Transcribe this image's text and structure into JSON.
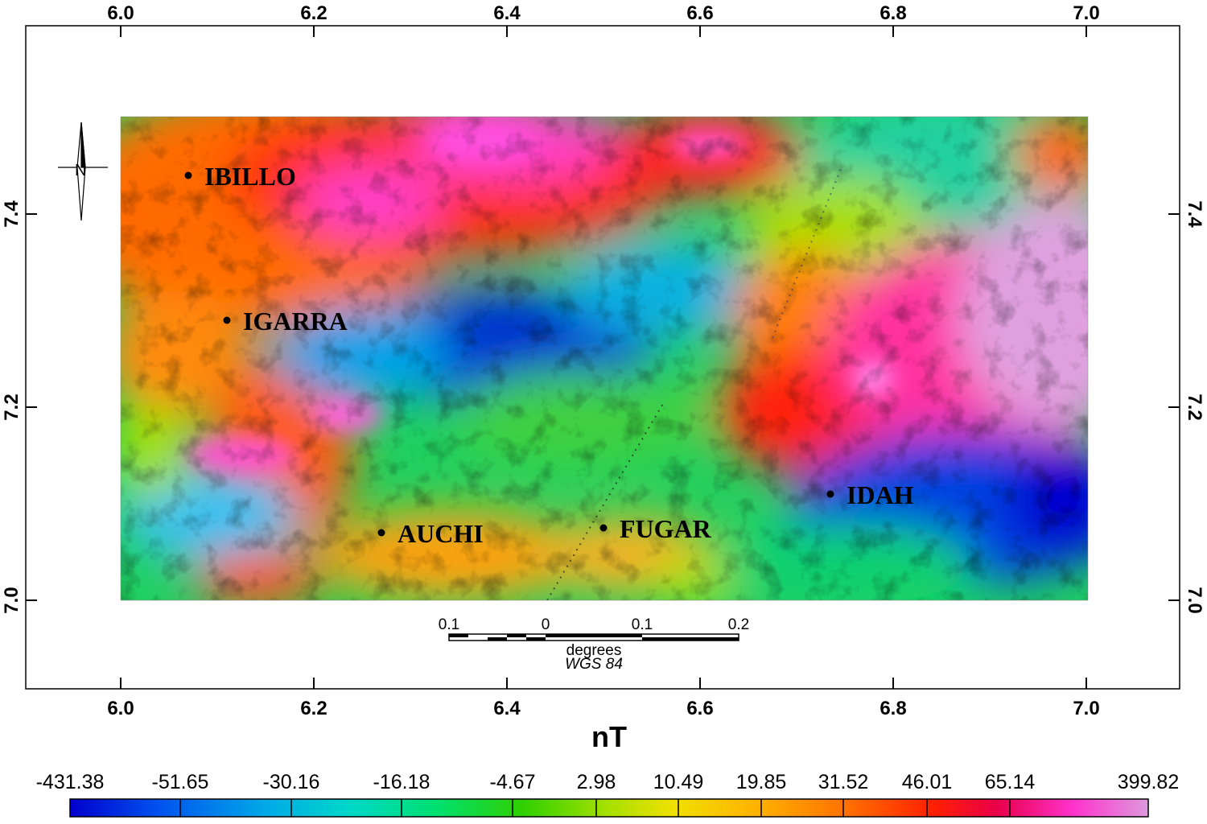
{
  "map": {
    "x_ticks": [
      "6.0",
      "6.2",
      "6.4",
      "6.6",
      "6.8",
      "7.0"
    ],
    "y_ticks": [
      "7.4",
      "7.2",
      "7.0"
    ],
    "towns": [
      {
        "name": "IBILLO",
        "lon": 6.07,
        "lat": 7.44
      },
      {
        "name": "IGARRA",
        "lon": 6.11,
        "lat": 7.29
      },
      {
        "name": "AUCHI",
        "lon": 6.27,
        "lat": 7.07
      },
      {
        "name": "FUGAR",
        "lon": 6.5,
        "lat": 7.075
      },
      {
        "name": "IDAH",
        "lon": 6.735,
        "lat": 7.11
      }
    ],
    "scale_bar": {
      "labels": [
        "0.1",
        "0",
        "0.1",
        "0.2"
      ],
      "unit": "degrees",
      "datum": "WGS 84"
    },
    "north_arrow_label": "N"
  },
  "colorbar": {
    "unit": "nT",
    "labels": [
      "-431.38",
      "-51.65",
      "-30.16",
      "-16.18",
      "-4.67",
      "2.98",
      "10.49",
      "19.85",
      "31.52",
      "46.01",
      "65.14",
      "399.82"
    ],
    "colors": [
      "#0000cc",
      "#0050ee",
      "#00a8e8",
      "#00d8c8",
      "#00e070",
      "#30d000",
      "#a8e000",
      "#f0e000",
      "#ffb000",
      "#ff7000",
      "#ff2000",
      "#e8004a",
      "#ff33cc",
      "#dd99dd"
    ]
  }
}
